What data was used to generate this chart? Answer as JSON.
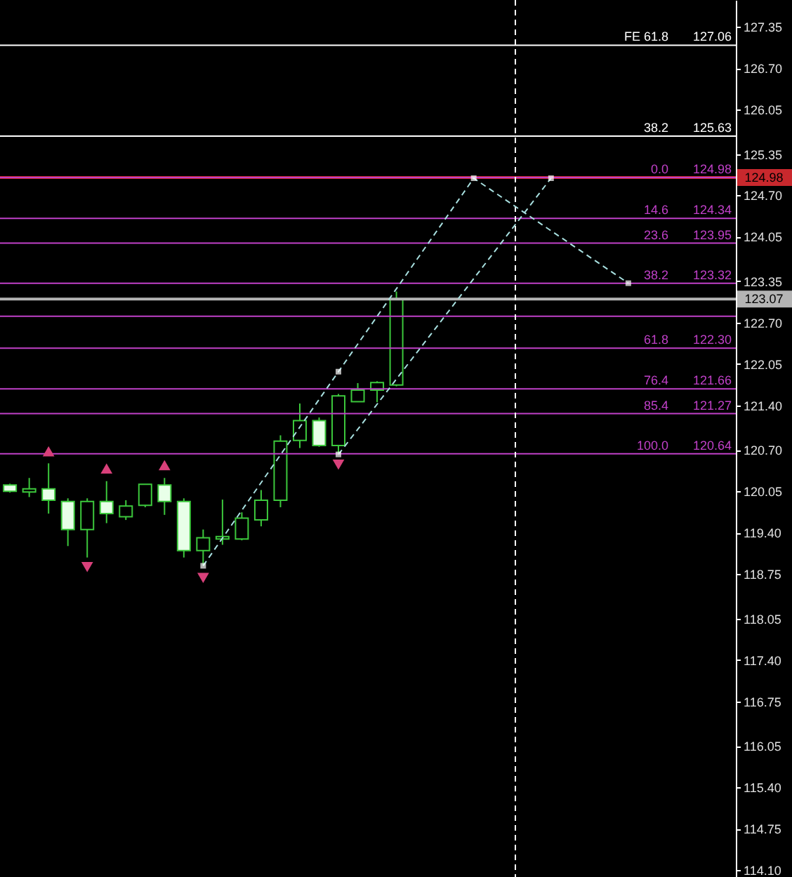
{
  "chart_data": {
    "type": "candlestick",
    "categories": [
      null,
      null,
      null,
      null,
      null,
      null,
      null,
      null,
      null,
      null,
      null,
      null,
      null,
      null,
      null,
      null,
      null,
      null,
      null,
      null,
      null,
      null,
      null,
      null,
      null,
      null,
      null,
      null,
      null,
      null,
      null,
      null,
      null,
      null,
      null,
      null,
      null,
      null
    ],
    "ohlc": [
      [
        120.15,
        120.17,
        120.03,
        120.05
      ],
      [
        120.04,
        120.26,
        119.96,
        120.09
      ],
      [
        120.09,
        120.49,
        119.7,
        119.91
      ],
      [
        119.89,
        119.94,
        119.19,
        119.45
      ],
      [
        119.45,
        119.94,
        119.01,
        119.89
      ],
      [
        119.89,
        120.21,
        119.55,
        119.7
      ],
      [
        119.65,
        119.91,
        119.6,
        119.82
      ],
      [
        119.83,
        120.16,
        119.8,
        120.16
      ],
      [
        120.15,
        120.26,
        119.68,
        119.89
      ],
      [
        119.89,
        119.94,
        119.01,
        119.12
      ],
      [
        119.12,
        119.45,
        118.88,
        119.32
      ],
      [
        119.3,
        119.92,
        119.21,
        119.34
      ],
      [
        119.3,
        119.72,
        119.28,
        119.63
      ],
      [
        119.6,
        120.07,
        119.5,
        119.91
      ],
      [
        119.91,
        120.93,
        119.8,
        120.84
      ],
      [
        120.85,
        121.43,
        120.73,
        121.16
      ],
      [
        121.16,
        121.21,
        120.75,
        120.77
      ],
      [
        120.77,
        121.58,
        120.63,
        121.55
      ],
      [
        121.46,
        121.75,
        121.46,
        121.64
      ],
      [
        121.64,
        121.78,
        121.45,
        121.76
      ],
      [
        121.72,
        123.19,
        121.7,
        123.07
      ],
      null,
      null,
      null,
      null,
      null,
      null,
      null,
      null,
      null,
      null,
      null,
      null,
      null,
      null,
      null,
      null,
      null
    ],
    "series": [
      {
        "type": "scatter",
        "marker": "triangle-up",
        "color": "#d8407a",
        "values": [
          null,
          null,
          120.68,
          null,
          null,
          120.41,
          null,
          null,
          120.46,
          null,
          null,
          null,
          null,
          null,
          null,
          null,
          null,
          null,
          null,
          null,
          null,
          null,
          null,
          null,
          null,
          null,
          null,
          null,
          null,
          null,
          null,
          null,
          null,
          null,
          null,
          null,
          null,
          null
        ]
      },
      {
        "type": "scatter",
        "marker": "triangle-down",
        "color": "#d8407a",
        "values": [
          null,
          null,
          null,
          null,
          118.86,
          null,
          null,
          null,
          null,
          null,
          118.69,
          null,
          null,
          null,
          null,
          null,
          null,
          120.47,
          null,
          null,
          null,
          null,
          null,
          null,
          null,
          null,
          null,
          null,
          null,
          null,
          null,
          null,
          null,
          null,
          null,
          null,
          null,
          null
        ]
      },
      {
        "type": "line",
        "marker": "square",
        "line_style": "dashed",
        "color": "#a8e0e0",
        "values": [
          null,
          null,
          null,
          null,
          null,
          null,
          null,
          null,
          null,
          null,
          118.88,
          null,
          null,
          null,
          null,
          null,
          null,
          121.93,
          null,
          null,
          null,
          null,
          null,
          null,
          124.97,
          null,
          null,
          null,
          null,
          null,
          null,
          null,
          123.32,
          null,
          null,
          null,
          null,
          null
        ]
      },
      {
        "type": "line",
        "marker": "square",
        "line_style": "dashed",
        "color": "#a8e0e0",
        "values": [
          null,
          null,
          null,
          null,
          null,
          null,
          null,
          null,
          null,
          null,
          null,
          null,
          null,
          null,
          null,
          null,
          null,
          120.63,
          null,
          null,
          null,
          null,
          null,
          null,
          null,
          null,
          null,
          null,
          124.97,
          null,
          null,
          null,
          null,
          null,
          null,
          null,
          null,
          null
        ]
      }
    ],
    "ylim": [
      113.99,
      127.77
    ],
    "yticks": [
      127.35,
      {
        "value": 126.7,
        "label": "126.70"
      },
      126.05,
      125.35,
      {
        "value": 124.7,
        "label": "124.70"
      },
      124.05,
      123.35,
      {
        "value": 122.7,
        "label": "122.70"
      },
      122.05,
      {
        "value": 121.4,
        "label": "121.40"
      },
      {
        "value": 120.7,
        "label": "120.70"
      },
      120.05,
      {
        "value": 119.4,
        "label": "119.40"
      },
      118.75,
      118.05,
      {
        "value": 117.4,
        "label": "117.40"
      },
      116.75,
      116.05,
      {
        "value": 115.4,
        "label": "115.40"
      },
      114.75,
      {
        "value": 114.1,
        "label": "114.10"
      }
    ],
    "annotations": [
      {
        "text": "FE 61.8",
        "y": 127.06
      },
      {
        "text": "127.06",
        "y": 127.06
      },
      {
        "text": "38.2",
        "y": 125.63
      },
      {
        "text": "125.63",
        "y": 125.63
      },
      {
        "text": "0.0",
        "y": 124.98
      },
      {
        "text": "124.98",
        "y": 124.98
      },
      {
        "text": "14.6",
        "y": 124.34
      },
      {
        "text": "124.34",
        "y": 124.34
      },
      {
        "text": "23.6",
        "y": 123.95
      },
      {
        "text": "123.95",
        "y": 123.95
      },
      {
        "text": "38.2",
        "y": 123.32
      },
      {
        "text": "123.32",
        "y": 123.32
      },
      {
        "text": "61.8",
        "y": 122.3
      },
      {
        "text": "122.30",
        "y": 122.3
      },
      {
        "text": "76.4",
        "y": 121.66
      },
      {
        "text": "121.66",
        "y": 121.66
      },
      {
        "text": "85.4",
        "y": 121.27
      },
      {
        "text": "121.27",
        "y": 121.27
      },
      {
        "text": "100.0",
        "y": 120.64
      },
      {
        "text": "120.64",
        "y": 120.64
      }
    ],
    "tick_labels": "y",
    "grid": false,
    "ref_lines": [
      {
        "axis": "y",
        "value": 124.98,
        "label": "124.98",
        "color": "#c8282d"
      },
      {
        "axis": "y",
        "value": 123.07,
        "label": "123.07",
        "color": "#b4b4b4"
      },
      {
        "axis": "y",
        "value": 127.06,
        "color": "#ffffff"
      },
      {
        "axis": "y",
        "value": 125.63,
        "color": "#ffffff"
      },
      {
        "axis": "y",
        "value": 124.98,
        "color": "#c040c8"
      },
      {
        "axis": "y",
        "value": 124.34,
        "color": "#c040c8"
      },
      {
        "axis": "y",
        "value": 123.95,
        "color": "#c040c8"
      },
      {
        "axis": "y",
        "value": 123.32,
        "color": "#c040c8"
      },
      {
        "axis": "y",
        "value": 122.8,
        "color": "#c040c8"
      },
      {
        "axis": "y",
        "value": 122.3,
        "color": "#c040c8"
      },
      {
        "axis": "y",
        "value": 121.66,
        "color": "#c040c8"
      },
      {
        "axis": "y",
        "value": 121.27,
        "color": "#c040c8"
      },
      {
        "axis": "y",
        "value": 120.64,
        "color": "#c040c8"
      }
    ]
  }
}
